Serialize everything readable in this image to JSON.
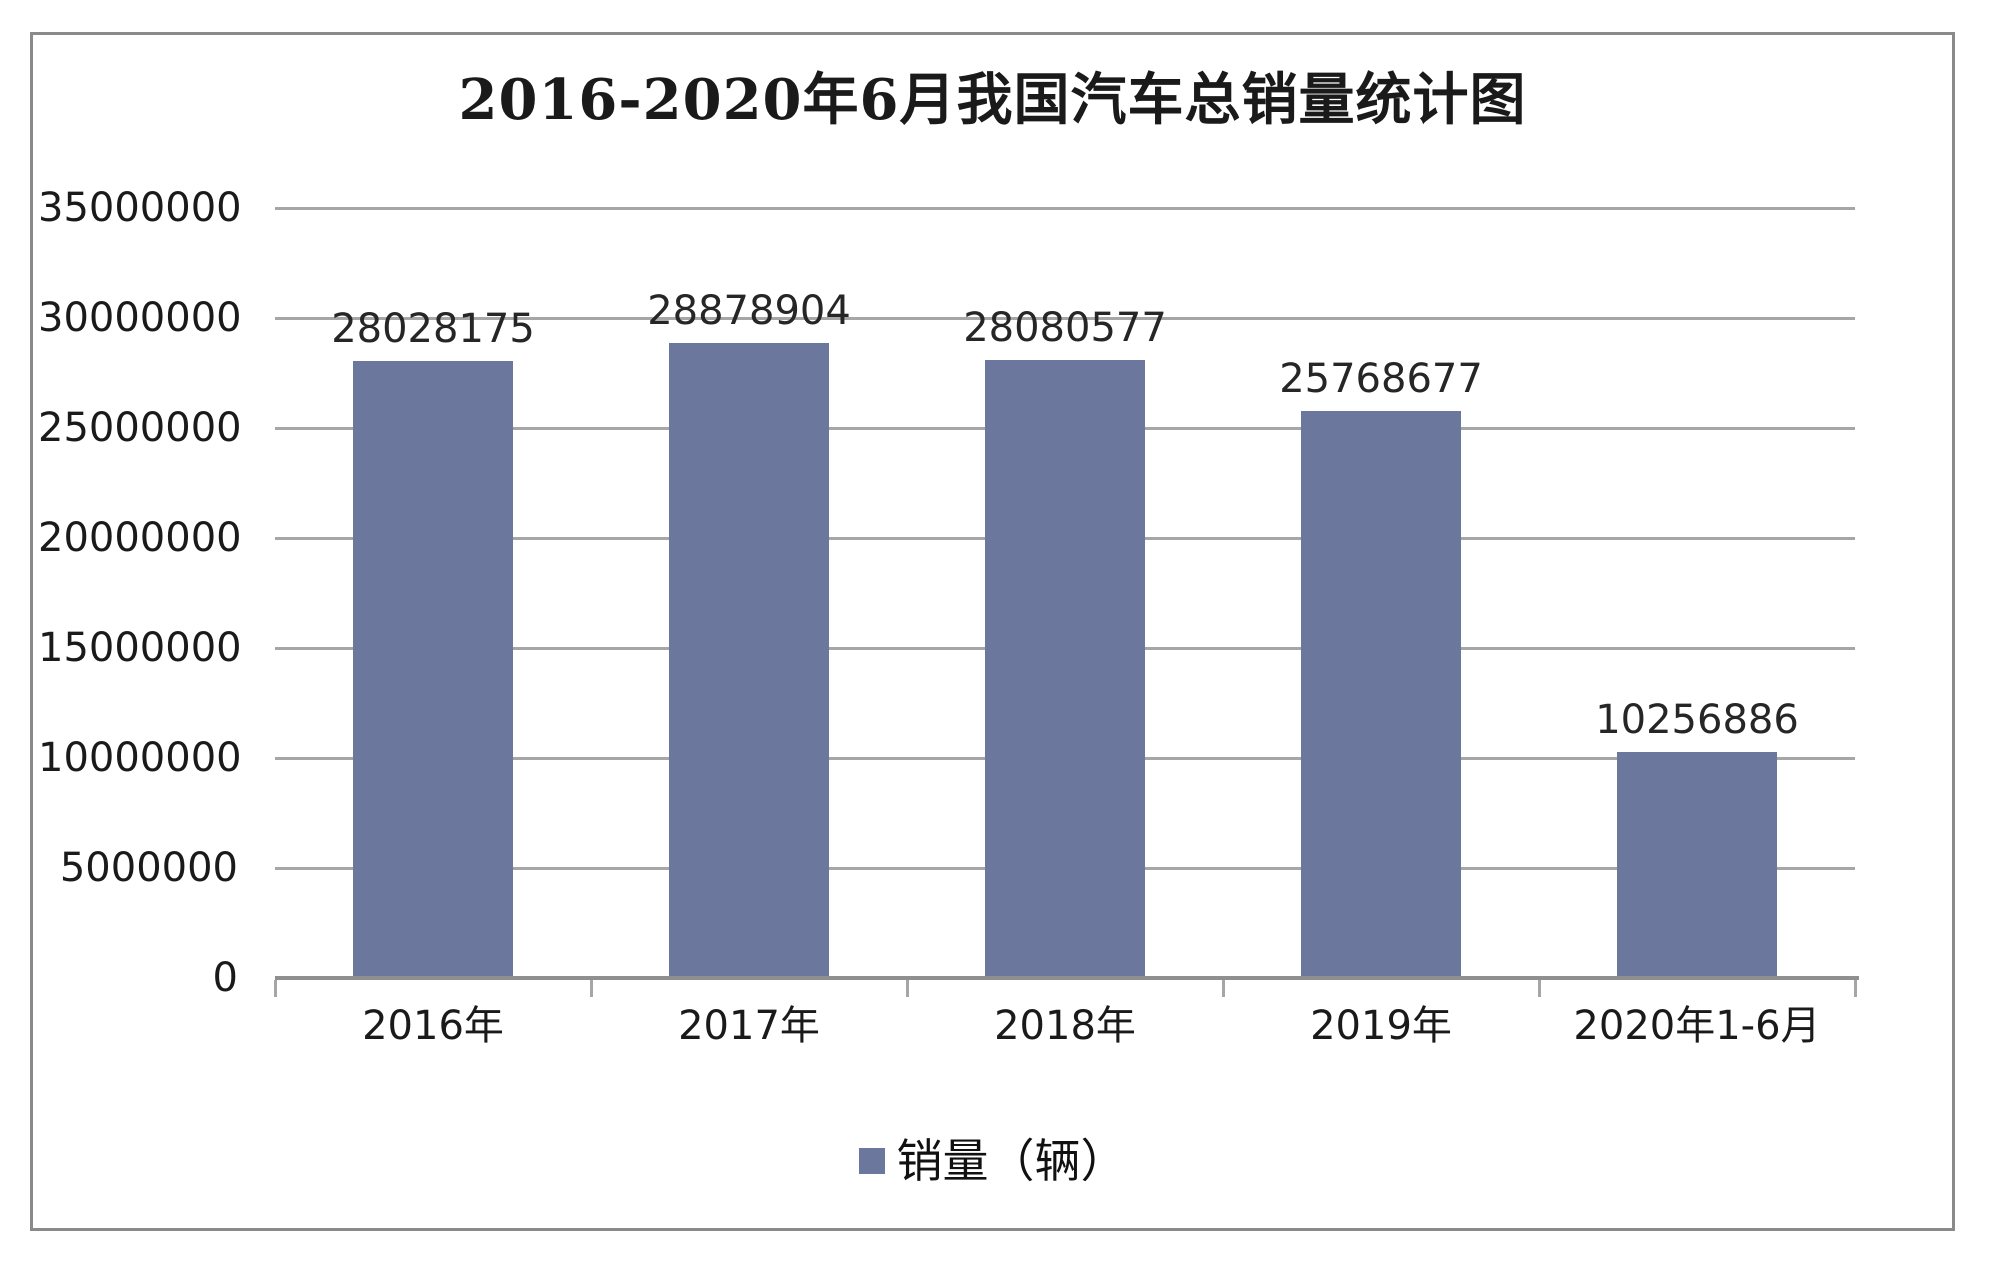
{
  "chart_data": {
    "type": "bar",
    "title": "2016-2020年6月我国汽车总销量统计图",
    "categories": [
      "2016年",
      "2017年",
      "2018年",
      "2019年",
      "2020年1-6月"
    ],
    "values": [
      28028175,
      28878904,
      28080577,
      25768677,
      10256886
    ],
    "value_labels": [
      "28028175",
      "28878904",
      "28080577",
      "25768677",
      "10256886"
    ],
    "series_name": "销量（辆）",
    "xlabel": "",
    "ylabel": "",
    "ylim": [
      0,
      35000000
    ],
    "yticks": [
      0,
      5000000,
      10000000,
      15000000,
      20000000,
      25000000,
      30000000,
      35000000
    ],
    "ytick_labels": [
      "0",
      "5000000",
      "10000000",
      "15000000",
      "20000000",
      "25000000",
      "30000000",
      "35000000"
    ],
    "grid": true,
    "legend_position": "bottom",
    "colors": {
      "bar_fill": "#6B779D",
      "gridline": "#A6A6A6",
      "axis_line": "#8F8F8F",
      "tick": "#A6A6A6",
      "text": "#1A1A1A",
      "frame_border": "#8A8A8A",
      "background": "#FFFFFF"
    }
  },
  "legend": {
    "label": "销量（辆）",
    "swatch_color": "#6B779D"
  }
}
